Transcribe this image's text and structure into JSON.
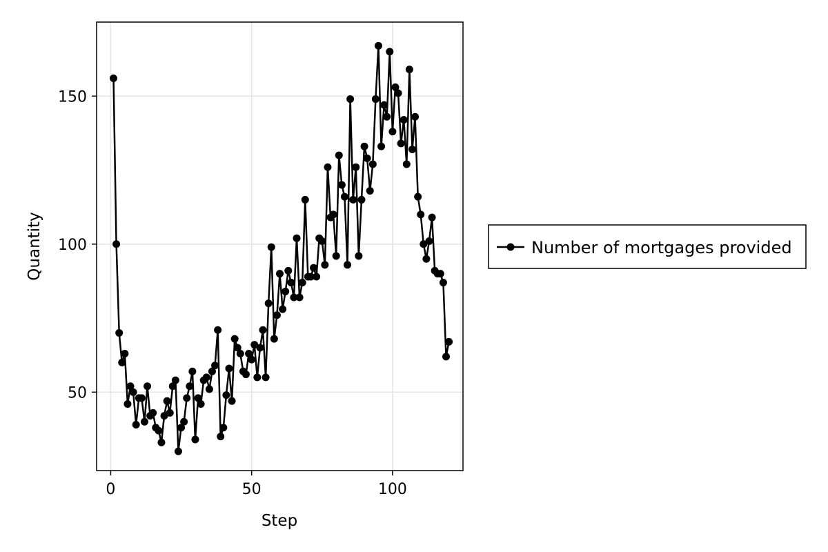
{
  "chart_data": {
    "type": "line",
    "title": "",
    "xlabel": "Step",
    "ylabel": "Quantity",
    "xlim": [
      -5,
      125
    ],
    "ylim": [
      23.5,
      175
    ],
    "xticks": [
      0,
      50,
      100
    ],
    "yticks": [
      50,
      100,
      150
    ],
    "grid": true,
    "legend_position": "right",
    "series": [
      {
        "name": "Number of mortgages provided",
        "color": "#000000",
        "marker": "circle",
        "x": [
          1,
          2,
          3,
          4,
          5,
          6,
          7,
          8,
          9,
          10,
          11,
          12,
          13,
          14,
          15,
          16,
          17,
          18,
          19,
          20,
          21,
          22,
          23,
          24,
          25,
          26,
          27,
          28,
          29,
          30,
          31,
          32,
          33,
          34,
          35,
          36,
          37,
          38,
          39,
          40,
          41,
          42,
          43,
          44,
          45,
          46,
          47,
          48,
          49,
          50,
          51,
          52,
          53,
          54,
          55,
          56,
          57,
          58,
          59,
          60,
          61,
          62,
          63,
          64,
          65,
          66,
          67,
          68,
          69,
          70,
          71,
          72,
          73,
          74,
          75,
          76,
          77,
          78,
          79,
          80,
          81,
          82,
          83,
          84,
          85,
          86,
          87,
          88,
          89,
          90,
          91,
          92,
          93,
          94,
          95,
          96,
          97,
          98,
          99,
          100,
          101,
          102,
          103,
          104,
          105,
          106,
          107,
          108,
          109,
          110,
          111,
          112,
          113,
          114,
          115,
          116,
          117,
          118,
          119,
          120
        ],
        "y": [
          156,
          100,
          70,
          60,
          63,
          46,
          52,
          50,
          39,
          48,
          48,
          40,
          52,
          42,
          43,
          38,
          37,
          33,
          42,
          47,
          43,
          52,
          54,
          30,
          38,
          40,
          48,
          52,
          57,
          34,
          48,
          46,
          54,
          55,
          51,
          57,
          59,
          71,
          35,
          38,
          49,
          58,
          47,
          68,
          65,
          63,
          57,
          56,
          63,
          61,
          66,
          55,
          65,
          71,
          55,
          80,
          99,
          68,
          76,
          90,
          78,
          84,
          91,
          87,
          82,
          102,
          82,
          87,
          115,
          89,
          89,
          92,
          89,
          102,
          101,
          93,
          126,
          109,
          110,
          96,
          130,
          120,
          116,
          93,
          149,
          115,
          126,
          96,
          115,
          133,
          129,
          118,
          127,
          149,
          167,
          133,
          147,
          143,
          165,
          138,
          153,
          151,
          134,
          142,
          127,
          159,
          132,
          143,
          116,
          110,
          100,
          95,
          101,
          109,
          91,
          90,
          90,
          87,
          62,
          67
        ]
      }
    ]
  }
}
